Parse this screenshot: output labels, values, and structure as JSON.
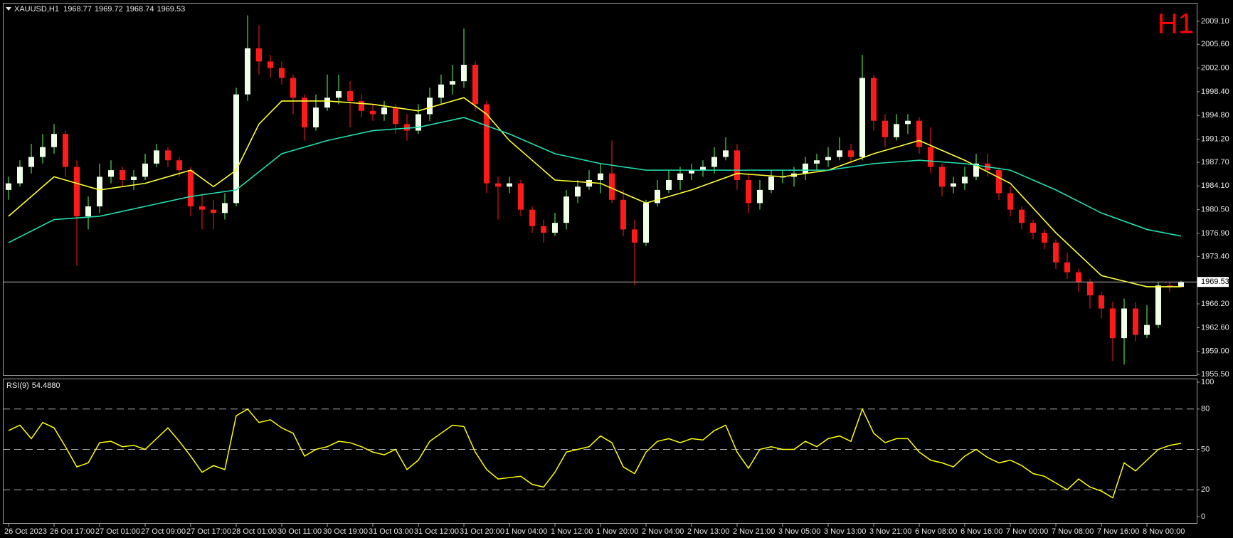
{
  "chart_data": {
    "type": "candlestick",
    "symbol": "XAUUSD,H1",
    "timeframe_label": "H1",
    "up_color": "#f0ffe8",
    "up_wick_color": "#66ff66",
    "down_color": "#ff1a1a",
    "open": [
      1983.5,
      1984.5,
      1987.0,
      1988.5,
      1990.0,
      1992.0,
      1987.0,
      1979.5,
      1981.0,
      1985.5,
      1986.5,
      1985.0,
      1985.5,
      1987.5,
      1989.5,
      1988.0,
      1986.5,
      1981.0,
      1980.5,
      1980.0,
      1981.5,
      1998.0,
      2005.0,
      2003.0,
      2002.0,
      2000.5,
      1997.5,
      1993.0,
      1996.0,
      1997.5,
      1998.5,
      1997.0,
      1995.5,
      1995.0,
      1996.0,
      1993.5,
      1992.5,
      1995.0,
      1997.5,
      1999.5,
      2000.0,
      2002.5,
      1996.5,
      1984.5,
      1984.0,
      1984.5,
      1980.5,
      1978.0,
      1977.0,
      1978.5,
      1982.5,
      1984.0,
      1985.0,
      1986.0,
      1982.0,
      1977.5,
      1975.5,
      1981.5,
      1983.5,
      1985.0,
      1986.0,
      1986.5,
      1987.0,
      1988.5,
      1989.5,
      1985.0,
      1981.5,
      1983.5,
      1985.5,
      1985.5,
      1986.0,
      1987.5,
      1988.0,
      1988.5,
      1989.5,
      1988.5,
      2000.5,
      1994.0,
      1991.5,
      1993.5,
      1994.0,
      1990.0,
      1987.0,
      1984.0,
      1984.5,
      1985.5,
      1987.5,
      1986.5,
      1983.0,
      1980.5,
      1978.5,
      1977.0,
      1975.5,
      1972.5,
      1971.0,
      1969.5,
      1967.5,
      1965.5,
      1961.0,
      1965.5,
      1961.5,
      1963.0,
      1969.0,
      1968.77
    ],
    "high": [
      1985.5,
      1988.0,
      1990.5,
      1992.0,
      1993.5,
      1992.5,
      1988.0,
      1982.5,
      1987.5,
      1988.0,
      1987.0,
      1986.5,
      1989.0,
      1990.5,
      1990.0,
      1988.5,
      1987.0,
      1983.0,
      1982.0,
      1983.0,
      1999.0,
      2010.0,
      2008.5,
      2004.0,
      2003.0,
      2001.0,
      1998.0,
      1998.0,
      2001.0,
      2001.0,
      2000.0,
      1998.0,
      1996.5,
      1997.0,
      1996.5,
      1995.0,
      1996.5,
      1999.0,
      2001.0,
      2002.5,
      2008.0,
      2003.0,
      1997.0,
      1985.5,
      1985.5,
      1985.0,
      1981.0,
      1979.0,
      1980.0,
      1983.5,
      1985.0,
      1986.5,
      1987.5,
      1991.0,
      1983.5,
      1979.0,
      1982.0,
      1985.0,
      1986.5,
      1987.0,
      1987.5,
      1988.0,
      1990.0,
      1991.5,
      1990.5,
      1986.0,
      1985.0,
      1986.5,
      1986.5,
      1987.0,
      1988.5,
      1989.0,
      1990.0,
      1991.5,
      1990.5,
      2004.0,
      2001.0,
      1995.0,
      1995.0,
      1995.0,
      1994.5,
      1993.0,
      1987.5,
      1985.5,
      1987.0,
      1989.0,
      1989.0,
      1987.0,
      1984.0,
      1981.0,
      1979.0,
      1977.5,
      1976.0,
      1974.0,
      1971.5,
      1970.0,
      1968.0,
      1966.5,
      1967.0,
      1966.5,
      1966.0,
      1969.5,
      1969.5,
      1969.72
    ],
    "low": [
      1982.0,
      1984.0,
      1986.0,
      1987.5,
      1989.0,
      1985.5,
      1972.0,
      1977.5,
      1980.0,
      1984.5,
      1984.0,
      1983.5,
      1985.0,
      1987.0,
      1987.0,
      1985.5,
      1979.5,
      1977.5,
      1977.5,
      1979.0,
      1981.0,
      1997.0,
      2001.0,
      2000.5,
      1999.5,
      1995.0,
      1991.0,
      1992.5,
      1995.5,
      1996.5,
      1993.0,
      1994.5,
      1994.0,
      1994.0,
      1992.0,
      1991.0,
      1992.0,
      1994.0,
      1996.5,
      1998.0,
      1999.0,
      1995.5,
      1983.0,
      1979.0,
      1983.0,
      1979.5,
      1977.0,
      1975.5,
      1976.5,
      1977.5,
      1981.5,
      1983.5,
      1983.0,
      1981.5,
      1976.5,
      1969.0,
      1975.0,
      1981.0,
      1983.0,
      1983.5,
      1985.0,
      1985.5,
      1986.0,
      1988.0,
      1983.5,
      1980.0,
      1980.5,
      1983.0,
      1984.5,
      1984.0,
      1985.0,
      1986.5,
      1987.0,
      1988.0,
      1987.5,
      1988.0,
      1992.5,
      1990.0,
      1991.0,
      1992.0,
      1989.0,
      1986.0,
      1982.5,
      1983.0,
      1983.5,
      1985.0,
      1985.5,
      1982.0,
      1979.5,
      1977.5,
      1976.0,
      1974.5,
      1971.5,
      1970.0,
      1968.0,
      1965.5,
      1964.0,
      1957.5,
      1957.0,
      1960.5,
      1961.0,
      1962.5,
      1968.0,
      1968.74
    ],
    "close": [
      1984.5,
      1987.0,
      1988.5,
      1990.0,
      1992.0,
      1987.0,
      1979.5,
      1981.0,
      1985.5,
      1986.5,
      1985.0,
      1985.5,
      1987.5,
      1989.5,
      1988.0,
      1986.5,
      1981.0,
      1980.5,
      1980.0,
      1981.5,
      1998.0,
      2005.0,
      2003.0,
      2002.0,
      2000.5,
      1997.5,
      1993.0,
      1996.0,
      1997.5,
      1998.5,
      1997.0,
      1995.5,
      1995.0,
      1996.0,
      1993.5,
      1992.5,
      1995.0,
      1997.5,
      1999.5,
      2000.0,
      2002.5,
      1996.5,
      1984.5,
      1984.0,
      1984.5,
      1980.5,
      1978.0,
      1977.0,
      1978.5,
      1982.5,
      1984.0,
      1985.0,
      1986.0,
      1982.0,
      1977.5,
      1975.5,
      1981.5,
      1983.5,
      1985.0,
      1986.0,
      1986.5,
      1987.0,
      1988.5,
      1989.5,
      1985.0,
      1981.5,
      1983.5,
      1985.5,
      1985.5,
      1986.0,
      1987.5,
      1988.0,
      1988.5,
      1989.5,
      1988.5,
      2000.5,
      1994.0,
      1991.5,
      1993.5,
      1994.0,
      1990.0,
      1987.0,
      1984.0,
      1984.5,
      1985.5,
      1987.5,
      1986.5,
      1983.0,
      1980.5,
      1978.5,
      1977.0,
      1975.5,
      1972.5,
      1971.0,
      1969.5,
      1967.5,
      1965.5,
      1961.0,
      1965.5,
      1961.5,
      1963.0,
      1969.0,
      1968.77,
      1969.53
    ],
    "ylim": [
      1955.4,
      2011.9
    ],
    "yticks": [
      {
        "value": 2009.1,
        "label": "2009.10"
      },
      {
        "value": 2005.6,
        "label": "2005.60"
      },
      {
        "value": 2002,
        "label": "2002.00"
      },
      {
        "value": 1998.4,
        "label": "1998.40"
      },
      {
        "value": 1994.8,
        "label": "1994.80"
      },
      {
        "value": 1991.2,
        "label": "1991.20"
      },
      {
        "value": 1987.7,
        "label": "1987.70"
      },
      {
        "value": 1984.1,
        "label": "1984.10"
      },
      {
        "value": 1980.5,
        "label": "1980.50"
      },
      {
        "value": 1976.9,
        "label": "1976.90"
      },
      {
        "value": 1973.4,
        "label": "1973.40"
      },
      {
        "value": 1966.2,
        "label": "1966.20"
      },
      {
        "value": 1962.6,
        "label": "1962.60"
      },
      {
        "value": 1959,
        "label": "1959.00"
      },
      {
        "value": 1955.5,
        "label": "1955.50"
      }
    ],
    "xticks": [
      {
        "value": 0,
        "label": "26 Oct 2023"
      },
      {
        "value": 4,
        "label": "26 Oct 17:00"
      },
      {
        "value": 8,
        "label": "27 Oct 01:00"
      },
      {
        "value": 12,
        "label": "27 Oct 09:00"
      },
      {
        "value": 16,
        "label": "27 Oct 17:00"
      },
      {
        "value": 20,
        "label": "28 Oct 01:00"
      },
      {
        "value": 24,
        "label": "30 Oct 11:00"
      },
      {
        "value": 28,
        "label": "30 Oct 19:00"
      },
      {
        "value": 32,
        "label": "31 Oct 03:00"
      },
      {
        "value": 36,
        "label": "31 Oct 12:00"
      },
      {
        "value": 40,
        "label": "31 Oct 20:00"
      },
      {
        "value": 44,
        "label": "1 Nov 04:00"
      },
      {
        "value": 48,
        "label": "1 Nov 12:00"
      },
      {
        "value": 52,
        "label": "1 Nov 20:00"
      },
      {
        "value": 56,
        "label": "2 Nov 04:00"
      },
      {
        "value": 60,
        "label": "2 Nov 13:00"
      },
      {
        "value": 64,
        "label": "2 Nov 21:00"
      },
      {
        "value": 68,
        "label": "3 Nov 05:00"
      },
      {
        "value": 72,
        "label": "3 Nov 13:00"
      },
      {
        "value": 76,
        "label": "3 Nov 21:00"
      },
      {
        "value": 80,
        "label": "6 Nov 08:00"
      },
      {
        "value": 84,
        "label": "6 Nov 16:00"
      },
      {
        "value": 88,
        "label": "7 Nov 00:00"
      },
      {
        "value": 92,
        "label": "7 Nov 08:00"
      },
      {
        "value": 96,
        "label": "7 Nov 16:00"
      },
      {
        "value": 100,
        "label": "8 Nov 00:00"
      }
    ],
    "ma_lines": [
      {
        "color": "#ffff33",
        "x": [
          0,
          4,
          8,
          12,
          16,
          18,
          20,
          22,
          24,
          28,
          32,
          36,
          40,
          42,
          44,
          48,
          52,
          56,
          60,
          64,
          68,
          72,
          76,
          80,
          84,
          88,
          92,
          96,
          100,
          103
        ],
        "values": [
          1979.5,
          1985.5,
          1983.5,
          1984.5,
          1986.5,
          1984.0,
          1986.5,
          1993.5,
          1997.0,
          1997.0,
          1996.5,
          1995.5,
          1997.5,
          1995.0,
          1991.0,
          1985.0,
          1984.5,
          1981.5,
          1983.5,
          1986.0,
          1985.5,
          1986.5,
          1989.0,
          1991.0,
          1988.0,
          1984.5,
          1977.0,
          1970.5,
          1968.8,
          1968.8
        ]
      },
      {
        "color": "#20e0b0",
        "x": [
          0,
          4,
          8,
          12,
          16,
          20,
          24,
          28,
          32,
          36,
          40,
          44,
          48,
          52,
          56,
          60,
          64,
          68,
          72,
          76,
          80,
          84,
          88,
          92,
          96,
          100,
          103
        ],
        "values": [
          1975.5,
          1979.0,
          1979.5,
          1981.0,
          1982.5,
          1983.5,
          1989.0,
          1991.0,
          1992.5,
          1993.0,
          1994.5,
          1992.0,
          1989.0,
          1987.5,
          1986.5,
          1986.5,
          1986.5,
          1986.5,
          1986.5,
          1987.5,
          1988.0,
          1987.5,
          1986.5,
          1983.5,
          1980.0,
          1977.5,
          1976.5
        ]
      }
    ],
    "rsi": {
      "name": "RSI(9)",
      "current_label": "54.4880",
      "color": "#ffff00",
      "ylim": [
        0,
        100
      ],
      "yticks": [
        0,
        20,
        50,
        80,
        100
      ],
      "levels": [
        20,
        50,
        80
      ],
      "values": [
        64,
        68,
        58,
        70,
        66,
        52,
        37,
        40,
        55,
        56,
        52,
        53,
        50,
        58,
        66,
        56,
        45,
        33,
        38,
        35,
        75,
        80,
        70,
        72,
        66,
        62,
        45,
        50,
        52,
        56,
        55,
        52,
        48,
        46,
        50,
        35,
        42,
        56,
        62,
        68,
        67,
        48,
        35,
        28,
        29,
        30,
        24,
        22,
        33,
        48,
        50,
        52,
        60,
        55,
        37,
        32,
        48,
        56,
        58,
        55,
        58,
        57,
        64,
        68,
        48,
        36,
        50,
        52,
        50,
        50,
        56,
        52,
        58,
        60,
        56,
        80,
        62,
        55,
        58,
        58,
        48,
        42,
        40,
        37,
        45,
        50,
        44,
        40,
        42,
        38,
        32,
        30,
        25,
        20,
        28,
        22,
        19,
        14,
        40,
        34,
        42,
        50,
        53,
        54.488
      ]
    }
  }
}
